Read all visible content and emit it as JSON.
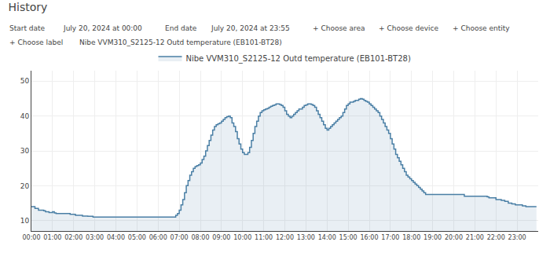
{
  "chart_data": {
    "type": "area",
    "title": "History",
    "annotations": [
      "Start date",
      "July 20, 2024 at 00:00",
      "End date",
      "July 20, 2024 at 23:55",
      "+ Choose area",
      "+ Choose device",
      "+ Choose entity",
      "+ Choose label",
      "Nibe VVM310_S2125-12 Outd temperature (EB101-BT28)"
    ],
    "x": [
      0,
      0.083,
      0.167,
      0.25,
      0.333,
      0.417,
      0.5,
      0.583,
      0.667,
      0.75,
      0.833,
      0.917,
      1,
      1.083,
      1.167,
      1.25,
      1.333,
      1.417,
      1.5,
      1.583,
      1.667,
      1.75,
      1.833,
      1.917,
      2,
      2.083,
      2.167,
      2.25,
      2.333,
      2.417,
      2.5,
      2.583,
      2.667,
      2.75,
      2.833,
      2.917,
      3,
      3.083,
      3.167,
      3.25,
      3.333,
      3.417,
      3.5,
      3.583,
      3.667,
      3.75,
      3.833,
      3.917,
      4,
      4.083,
      4.167,
      4.25,
      4.333,
      4.417,
      4.5,
      4.583,
      4.667,
      4.75,
      4.833,
      4.917,
      5,
      5.083,
      5.167,
      5.25,
      5.333,
      5.417,
      5.5,
      5.583,
      5.667,
      5.75,
      5.833,
      5.917,
      6,
      6.083,
      6.167,
      6.25,
      6.333,
      6.417,
      6.5,
      6.583,
      6.667,
      6.75,
      6.833,
      6.917,
      7,
      7.083,
      7.167,
      7.25,
      7.333,
      7.417,
      7.5,
      7.583,
      7.667,
      7.75,
      7.833,
      7.917,
      8,
      8.083,
      8.167,
      8.25,
      8.333,
      8.417,
      8.5,
      8.583,
      8.667,
      8.75,
      8.833,
      8.917,
      9,
      9.083,
      9.167,
      9.25,
      9.333,
      9.417,
      9.5,
      9.583,
      9.667,
      9.75,
      9.833,
      9.917,
      10,
      10.083,
      10.167,
      10.25,
      10.333,
      10.417,
      10.5,
      10.583,
      10.667,
      10.75,
      10.833,
      10.917,
      11,
      11.083,
      11.167,
      11.25,
      11.333,
      11.417,
      11.5,
      11.583,
      11.667,
      11.75,
      11.833,
      11.917,
      12,
      12.083,
      12.167,
      12.25,
      12.333,
      12.417,
      12.5,
      12.583,
      12.667,
      12.75,
      12.833,
      12.917,
      13,
      13.083,
      13.167,
      13.25,
      13.333,
      13.417,
      13.5,
      13.583,
      13.667,
      13.75,
      13.833,
      13.917,
      14,
      14.083,
      14.167,
      14.25,
      14.333,
      14.417,
      14.5,
      14.583,
      14.667,
      14.75,
      14.833,
      14.917,
      15,
      15.083,
      15.167,
      15.25,
      15.333,
      15.417,
      15.5,
      15.583,
      15.667,
      15.75,
      15.833,
      15.917,
      16,
      16.083,
      16.167,
      16.25,
      16.333,
      16.417,
      16.5,
      16.583,
      16.667,
      16.75,
      16.833,
      16.917,
      17,
      17.083,
      17.167,
      17.25,
      17.333,
      17.417,
      17.5,
      17.583,
      17.667,
      17.75,
      17.833,
      17.917,
      18,
      18.083,
      18.167,
      18.25,
      18.333,
      18.417,
      18.5,
      18.583,
      18.667,
      18.75,
      18.833,
      18.917,
      19,
      19.083,
      19.167,
      19.25,
      19.333,
      19.417,
      19.5,
      19.583,
      19.667,
      19.75,
      19.833,
      19.917,
      20,
      20.083,
      20.167,
      20.25,
      20.333,
      20.417,
      20.5,
      20.583,
      20.667,
      20.75,
      20.833,
      20.917,
      21,
      21.083,
      21.167,
      21.25,
      21.333,
      21.417,
      21.5,
      21.583,
      21.667,
      21.75,
      21.833,
      21.917,
      22,
      22.083,
      22.167,
      22.25,
      22.333,
      22.417,
      22.5,
      22.583,
      22.667,
      22.75,
      22.833,
      22.917,
      23,
      23.083,
      23.167,
      23.25,
      23.333,
      23.417,
      23.5,
      23.583,
      23.667,
      23.75,
      23.833,
      23.917
    ],
    "series": [
      {
        "name": "Nibe VVM310_S2125-12 Outd temperature (EB101-BT28)",
        "color": "#4a7fa5",
        "line_style": "step",
        "values": [
          14,
          14,
          13.5,
          13.5,
          13,
          13,
          13,
          12.8,
          12.5,
          12.5,
          12.3,
          12.3,
          12.5,
          12.2,
          12,
          12,
          12,
          12,
          12,
          12,
          12,
          12,
          11.8,
          11.8,
          11.8,
          11.5,
          11.5,
          11.5,
          11.5,
          11.3,
          11.3,
          11.3,
          11.2,
          11.2,
          11.2,
          11.0,
          11.0,
          11.0,
          11.0,
          11.0,
          11.0,
          11.0,
          11.0,
          11.0,
          11.0,
          11.0,
          11.0,
          11.0,
          11.0,
          11.0,
          11.0,
          11.0,
          11.0,
          11.0,
          11.0,
          11.0,
          11.0,
          11.0,
          11.0,
          11.0,
          11.0,
          11.0,
          11.0,
          11.0,
          11.0,
          11.0,
          11.0,
          11.0,
          11.0,
          11.0,
          11.0,
          11.0,
          11.0,
          11.0,
          11.0,
          11.0,
          11.0,
          11.0,
          11.0,
          11.0,
          11.0,
          11.0,
          11.5,
          12.0,
          13.0,
          14.5,
          16.0,
          18.0,
          20.0,
          21.5,
          23.0,
          24.0,
          25.0,
          25.5,
          25.8,
          26.0,
          26.5,
          27.5,
          28.5,
          30.0,
          31.5,
          33.0,
          34.5,
          36.0,
          37.0,
          37.5,
          37.8,
          38.0,
          38.5,
          39.0,
          39.5,
          39.8,
          40.0,
          39.5,
          38.0,
          37.0,
          35.5,
          33.5,
          32.0,
          30.5,
          29.5,
          29.0,
          29.0,
          29.5,
          31.0,
          33.0,
          35.0,
          37.0,
          38.5,
          40.0,
          41.0,
          41.5,
          41.8,
          42.0,
          42.2,
          42.5,
          42.8,
          43.0,
          43.2,
          43.5,
          43.5,
          43.3,
          43.0,
          42.5,
          41.5,
          40.5,
          40.0,
          39.5,
          40.0,
          40.5,
          41.0,
          41.5,
          42.0,
          42.0,
          42.5,
          43.0,
          43.2,
          43.5,
          43.5,
          43.3,
          43.0,
          42.5,
          41.5,
          40.5,
          39.5,
          38.5,
          37.5,
          36.5,
          36.0,
          36.5,
          37.0,
          37.5,
          38.0,
          38.5,
          39.0,
          39.5,
          40.0,
          41.0,
          42.0,
          43.0,
          43.5,
          44.0,
          44.0,
          44.2,
          44.5,
          44.5,
          44.8,
          45.0,
          44.8,
          44.5,
          44.2,
          44.0,
          43.5,
          43.0,
          42.5,
          42.0,
          41.5,
          41.0,
          40.0,
          39.0,
          38.0,
          37.0,
          36.0,
          35.0,
          33.5,
          32.0,
          30.5,
          29.0,
          28.0,
          27.0,
          26.0,
          25.0,
          24.0,
          23.0,
          22.5,
          22.0,
          21.5,
          21.0,
          20.5,
          20.0,
          19.5,
          19.0,
          18.5,
          18.0,
          17.5,
          17.5,
          17.5,
          17.5,
          17.5,
          17.5,
          17.5,
          17.5,
          17.5,
          17.5,
          17.5,
          17.5,
          17.5,
          17.5,
          17.5,
          17.5,
          17.5,
          17.5,
          17.5,
          17.5,
          17.5,
          17.5,
          17.0,
          17.0,
          17.0,
          17.0,
          17.0,
          17.0,
          17.0,
          17.0,
          17.0,
          17.0,
          17.0,
          17.0,
          17.0,
          16.8,
          16.5,
          16.5,
          16.5,
          16.5,
          16.0,
          16.0,
          16.0,
          15.8,
          15.8,
          15.5,
          15.5,
          15.0,
          15.0,
          14.8,
          14.8,
          14.5,
          14.5,
          14.5,
          14.5,
          14.2,
          14.2,
          14.0,
          14.0,
          14.0,
          14.0,
          14.0,
          14.0,
          14.0
        ]
      }
    ],
    "xlim": [
      0,
      24
    ],
    "xticks": [
      {
        "value": 0,
        "label": "00:00"
      },
      {
        "value": 1,
        "label": "01:00"
      },
      {
        "value": 2,
        "label": "02:00"
      },
      {
        "value": 3,
        "label": "03:00"
      },
      {
        "value": 4,
        "label": "04:00"
      },
      {
        "value": 5,
        "label": "05:00"
      },
      {
        "value": 6,
        "label": "06:00"
      },
      {
        "value": 7,
        "label": "07:00"
      },
      {
        "value": 8,
        "label": "08:00"
      },
      {
        "value": 9,
        "label": "09:00"
      },
      {
        "value": 10,
        "label": "10:00"
      },
      {
        "value": 11,
        "label": "11:00"
      },
      {
        "value": 12,
        "label": "12:00"
      },
      {
        "value": 13,
        "label": "13:00"
      },
      {
        "value": 14,
        "label": "14:00"
      },
      {
        "value": 15,
        "label": "15:00"
      },
      {
        "value": 16,
        "label": "16:00"
      },
      {
        "value": 17,
        "label": "17:00"
      },
      {
        "value": 18,
        "label": "18:00"
      },
      {
        "value": 19,
        "label": "19:00"
      },
      {
        "value": 20,
        "label": "20:00"
      },
      {
        "value": 21,
        "label": "21:00"
      },
      {
        "value": 22,
        "label": "22:00"
      },
      {
        "value": 23,
        "label": "23:00"
      }
    ],
    "ylim": [
      7,
      53
    ],
    "yticks": [
      10,
      20,
      30,
      40,
      50
    ],
    "grid": true,
    "legend": "top"
  }
}
